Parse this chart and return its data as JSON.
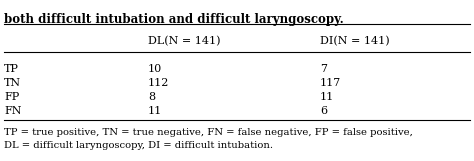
{
  "title_line": "both difficult intubation and difficult laryngoscopy.",
  "col_headers": [
    "",
    "DL(N = 141)",
    "DI(N = 141)"
  ],
  "rows": [
    [
      "TP",
      "10",
      "7"
    ],
    [
      "TN",
      "112",
      "117"
    ],
    [
      "FP",
      "8",
      "11"
    ],
    [
      "FN",
      "11",
      "6"
    ]
  ],
  "footnote1": "TP = true positive, TN = true negative, FN = false negative, FP = false positive,",
  "footnote2": "DL = difficult laryngoscopy, DI = difficult intubation.",
  "bg_color": "#ffffff",
  "text_color": "#000000",
  "font_size": 8.0,
  "footnote_font_size": 7.2,
  "title_font_size": 8.5
}
